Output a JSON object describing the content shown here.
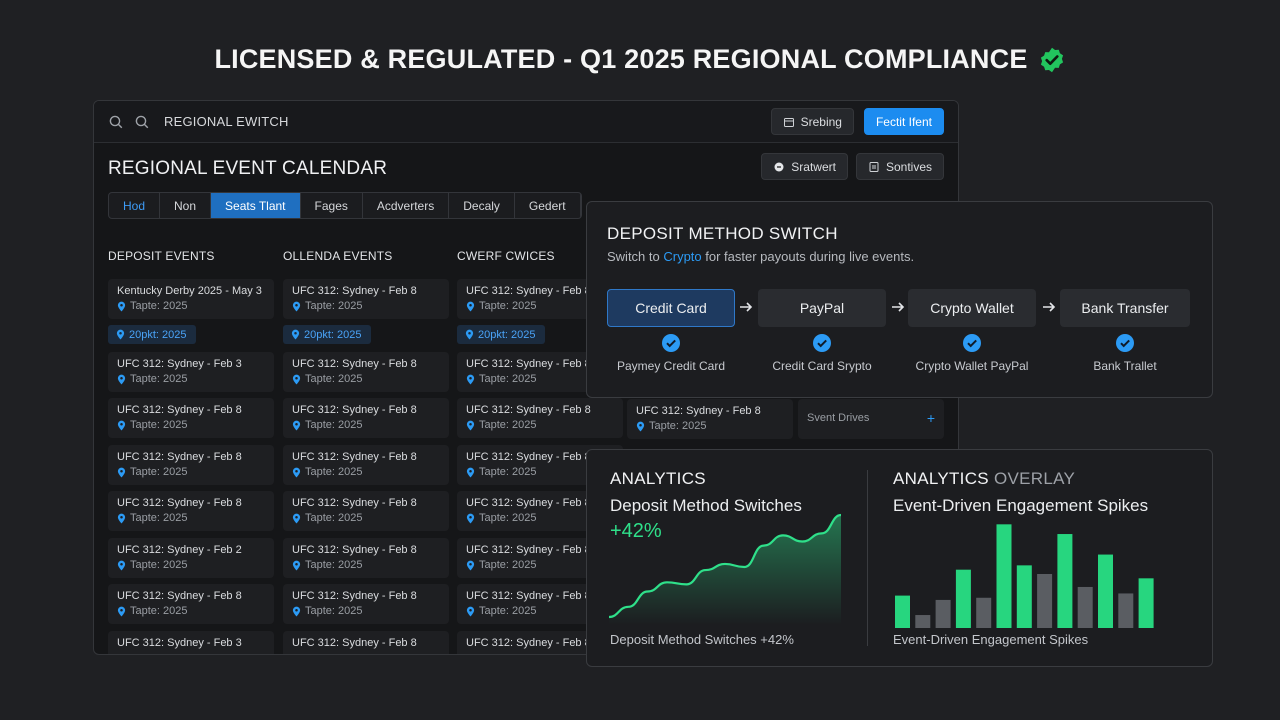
{
  "headline": "LICENSED & REGULATED - Q1 2025 REGIONAL COMPLIANCE",
  "colors": {
    "accent": "#1c8cf0",
    "success": "#2fe08a",
    "background": "#1f2023"
  },
  "window": {
    "title": "REGIONAL EWITCH",
    "btn_secondary": "Srebing",
    "btn_primary": "Fectit Ifent",
    "calendar_title": "REGIONAL EVENT CALENDAR",
    "action_1": "Sratwert",
    "action_2": "Sontives",
    "tabs": [
      "Hod",
      "Non",
      "Seats Tlant",
      "Fages",
      "Acdverters",
      "Decaly",
      "Gedert"
    ],
    "columns": [
      "DEPOSIT EVENTS",
      "OLLENDA EVENTS",
      "CWERF CWICES"
    ],
    "col1": [
      {
        "title": "Kentucky Derby 2025 - May 3",
        "loc": "Tapte: 2025"
      },
      {
        "title": "UFC 312: Sydney - Feb 3",
        "loc": "Tapte: 2025"
      },
      {
        "title": "UFC 312: Sydney - Feb 8",
        "loc": "Tapte: 2025"
      },
      {
        "title": "UFC 312: Sydney - Feb 8",
        "loc": "Tapte: 2025"
      },
      {
        "title": "UFC 312: Sydney - Feb 8",
        "loc": "Tapte: 2025"
      },
      {
        "title": "UFC 312: Sydney - Feb 2",
        "loc": "Tapte: 2025"
      },
      {
        "title": "UFC 312: Sydney - Feb 8",
        "loc": "Tapte: 2025"
      },
      {
        "title": "UFC 312: Sydney - Feb 3",
        "loc": ""
      }
    ],
    "col2": [
      {
        "title": "UFC 312: Sydney - Feb 8",
        "loc": "Tapte: 2025"
      },
      {
        "title": "UFC 312: Sydney - Feb 8",
        "loc": "Tapte: 2025"
      },
      {
        "title": "UFC 312: Sydney - Feb 8",
        "loc": "Tapte: 2025"
      },
      {
        "title": "UFC 312: Sydney - Feb 8",
        "loc": "Tapte: 2025"
      },
      {
        "title": "UFC 312: Sydney - Feb 8",
        "loc": "Tapte: 2025"
      },
      {
        "title": "UFC 312: Sydney - Feb 8",
        "loc": "Tapte: 2025"
      },
      {
        "title": "UFC 312: Sydney - Feb 8",
        "loc": "Tapte: 2025"
      },
      {
        "title": "UFC 312: Sydney - Feb 8",
        "loc": ""
      }
    ],
    "col3": [
      {
        "title": "UFC 312: Sydney - Feb 8",
        "loc": "Tapte: 2025"
      },
      {
        "title": "UFC 312: Sydney - Feb 8",
        "loc": "Tapte: 2025"
      },
      {
        "title": "UFC 312: Sydney - Feb 8",
        "loc": "Tapte: 2025"
      },
      {
        "title": "UFC 312: Sydney - Feb 8",
        "loc": "Tapte: 2025"
      },
      {
        "title": "UFC 312: Sydney - Feb 8",
        "loc": "Tapte: 2025"
      },
      {
        "title": "UFC 312: Sydney - Feb 8",
        "loc": "Tapte: 2025"
      },
      {
        "title": "UFC 312: Sydney - Feb 8",
        "loc": "Tapte: 2025"
      },
      {
        "title": "UFC 312: Sydney - Feb 8",
        "loc": ""
      }
    ],
    "pill": "20pkt: 2025",
    "col4_card": {
      "title": "UFC 312: Sydney - Feb 8",
      "loc": "Tapte: 2025"
    },
    "col5_card": "Svent Drives"
  },
  "deposit": {
    "title": "DEPOSIT METHOD SWITCH",
    "sub_pre": "Switch to ",
    "sub_hl": "Crypto",
    "sub_post": " for faster payouts during live events.",
    "methods": [
      "Credit Card",
      "PayPal",
      "Crypto Wallet",
      "Bank Transfer"
    ],
    "labels": [
      "Paymey Credit Card",
      "Credit Card Srypto",
      "Crypto Wallet PayPal",
      "Bank Tral⁠let"
    ]
  },
  "analytics": {
    "left_title": "ANALYTICS",
    "left_sub": "Deposit Method Switches",
    "left_pct": "+42%",
    "left_foot": "Deposit Method Switches +42%",
    "right_title": "ANALYTICS",
    "right_title_dim": " OVERLAY",
    "right_sub": "Event-Driven Engagement Spikes",
    "right_foot": "Event-Driven Engagement Spikes"
  },
  "chart_data": [
    {
      "type": "area",
      "title": "Deposit Method Switches",
      "values": [
        0,
        10,
        25,
        34,
        32,
        46,
        52,
        49,
        70,
        80,
        74,
        82,
        100
      ]
    },
    {
      "type": "bar",
      "title": "Event-Driven Engagement Spikes",
      "series": [
        {
          "values": [
            30,
            12,
            26,
            54,
            28,
            96,
            58,
            50,
            87,
            38,
            68,
            32,
            46
          ],
          "highlight": [
            true,
            false,
            false,
            true,
            false,
            true,
            true,
            false,
            true,
            false,
            true,
            false,
            true
          ]
        }
      ]
    }
  ]
}
